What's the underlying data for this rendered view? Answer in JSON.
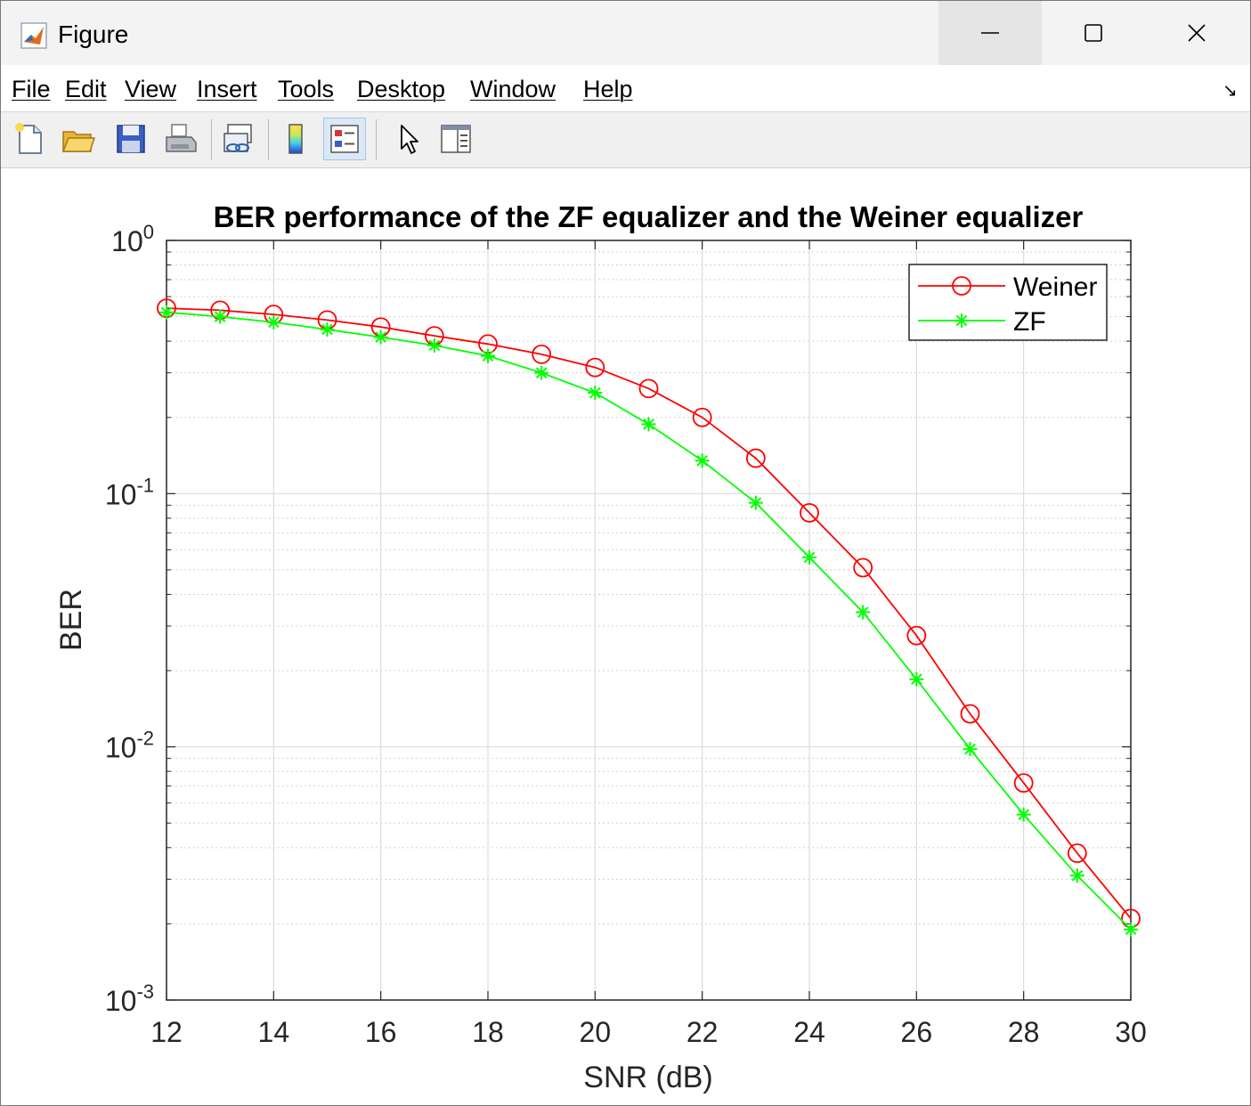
{
  "window": {
    "title": "Figure",
    "minimize_icon": "minimize-icon",
    "maximize_icon": "maximize-icon",
    "close_icon": "close-icon"
  },
  "menu": {
    "items": [
      "File",
      "Edit",
      "View",
      "Insert",
      "Tools",
      "Desktop",
      "Window",
      "Help"
    ]
  },
  "toolbar": {
    "buttons": [
      {
        "name": "new-figure-button",
        "icon": "new-file-icon"
      },
      {
        "name": "open-file-button",
        "icon": "folder-open-icon"
      },
      {
        "name": "save-figure-button",
        "icon": "save-icon"
      },
      {
        "name": "print-figure-button",
        "icon": "printer-icon"
      },
      {
        "name": "link-plot-button",
        "icon": "link-plot-icon"
      },
      {
        "name": "insert-colorbar-button",
        "icon": "colorbar-icon"
      },
      {
        "name": "insert-legend-button",
        "icon": "legend-icon",
        "active": true
      },
      {
        "name": "edit-plot-button",
        "icon": "pointer-icon"
      },
      {
        "name": "property-inspector-button",
        "icon": "panel-icon"
      }
    ]
  },
  "chart_data": {
    "type": "line",
    "title": "BER performance of the ZF equalizer and the Weiner equalizer",
    "xlabel": "SNR (dB)",
    "ylabel": "BER",
    "xlim": [
      12,
      30
    ],
    "ylim": [
      0.001,
      1
    ],
    "yscale": "log",
    "grid": true,
    "legend_position": "top-right",
    "x": [
      12,
      13,
      14,
      15,
      16,
      17,
      18,
      19,
      20,
      21,
      22,
      23,
      24,
      25,
      26,
      27,
      28,
      29,
      30
    ],
    "x_ticks": [
      "12",
      "14",
      "16",
      "18",
      "20",
      "22",
      "24",
      "26",
      "28",
      "30"
    ],
    "y_ticks": [
      {
        "base": "10",
        "exp": "0"
      },
      {
        "base": "10",
        "exp": "-1"
      },
      {
        "base": "10",
        "exp": "-2"
      },
      {
        "base": "10",
        "exp": "-3"
      }
    ],
    "series": [
      {
        "name": "Weiner",
        "color": "#ff0000",
        "marker": "circle",
        "values": [
          0.54,
          0.53,
          0.51,
          0.485,
          0.455,
          0.42,
          0.39,
          0.355,
          0.315,
          0.26,
          0.2,
          0.138,
          0.084,
          0.051,
          0.0275,
          0.0135,
          0.0072,
          0.0038,
          0.0021
        ]
      },
      {
        "name": "ZF",
        "color": "#00ff00",
        "marker": "asterisk",
        "values": [
          0.52,
          0.5,
          0.475,
          0.445,
          0.415,
          0.385,
          0.35,
          0.3,
          0.25,
          0.188,
          0.135,
          0.092,
          0.056,
          0.034,
          0.0185,
          0.0098,
          0.0054,
          0.0031,
          0.0019
        ]
      }
    ]
  }
}
